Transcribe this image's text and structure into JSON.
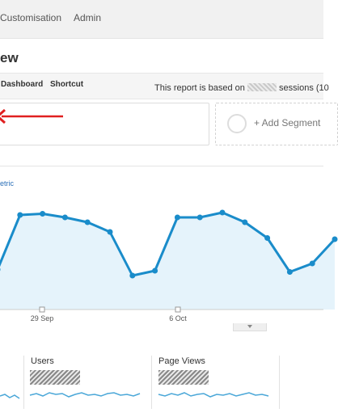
{
  "nav": {
    "customisation": "Customisation",
    "admin": "Admin"
  },
  "page": {
    "title_fragment": "ew"
  },
  "toolbar": {
    "dashboard": "Dashboard",
    "shortcut": "Shortcut",
    "note_prefix": "This report is based on",
    "note_suffix": "sessions (10"
  },
  "segments": {
    "add_label": "+ Add Segment"
  },
  "chart": {
    "metric_link": "etric"
  },
  "chart_data": {
    "type": "line",
    "x_tick_labels": [
      "29 Sep",
      "6 Oct"
    ],
    "values": [
      0.33,
      0.78,
      0.79,
      0.76,
      0.72,
      0.64,
      0.28,
      0.32,
      0.76,
      0.76,
      0.8,
      0.72,
      0.59,
      0.31,
      0.38,
      0.58
    ],
    "line_color": "#1a8cca",
    "fill_color": "#e5f3fb",
    "grid": false
  },
  "cards": [
    {
      "label": "Users"
    },
    {
      "label": "Page Views"
    }
  ],
  "colors": {
    "annotation_arrow": "#e02020"
  }
}
